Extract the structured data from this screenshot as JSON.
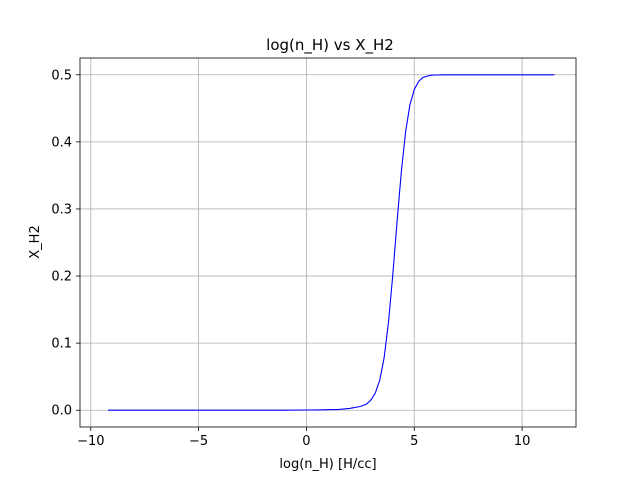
{
  "chart_data": {
    "type": "line",
    "title": "log(n_H) vs X_H2",
    "xlabel": "log(n_H) [H/cc]",
    "ylabel": "X_H2",
    "xlim": [
      -10.5,
      12.5
    ],
    "ylim": [
      -0.025,
      0.525
    ],
    "xticks": [
      -10,
      -5,
      0,
      5,
      10
    ],
    "xtick_labels": [
      "−10",
      "−5",
      "0",
      "5",
      "10"
    ],
    "yticks": [
      0.0,
      0.1,
      0.2,
      0.3,
      0.4,
      0.5
    ],
    "ytick_labels": [
      "0.0",
      "0.1",
      "0.2",
      "0.3",
      "0.4",
      "0.5"
    ],
    "grid": true,
    "legend": "none",
    "series": [
      {
        "color": "#0000ff",
        "x": [
          -9.2,
          -6,
          -3,
          -1,
          0,
          0.5,
          1,
          1.5,
          2,
          2.5,
          2.8,
          3.0,
          3.2,
          3.4,
          3.6,
          3.8,
          4.0,
          4.2,
          4.4,
          4.6,
          4.8,
          5.0,
          5.2,
          5.4,
          5.6,
          5.8,
          6.0,
          6.3,
          7,
          8,
          9,
          10,
          11.5
        ],
        "y": [
          0.0,
          0.0,
          0.0,
          0.0,
          0.0003,
          0.0005,
          0.0008,
          0.0013,
          0.0027,
          0.0055,
          0.0095,
          0.0155,
          0.026,
          0.045,
          0.078,
          0.13,
          0.2,
          0.28,
          0.355,
          0.415,
          0.455,
          0.478,
          0.49,
          0.496,
          0.498,
          0.4993,
          0.4997,
          0.5,
          0.5,
          0.5,
          0.5,
          0.5,
          0.5
        ]
      }
    ]
  }
}
